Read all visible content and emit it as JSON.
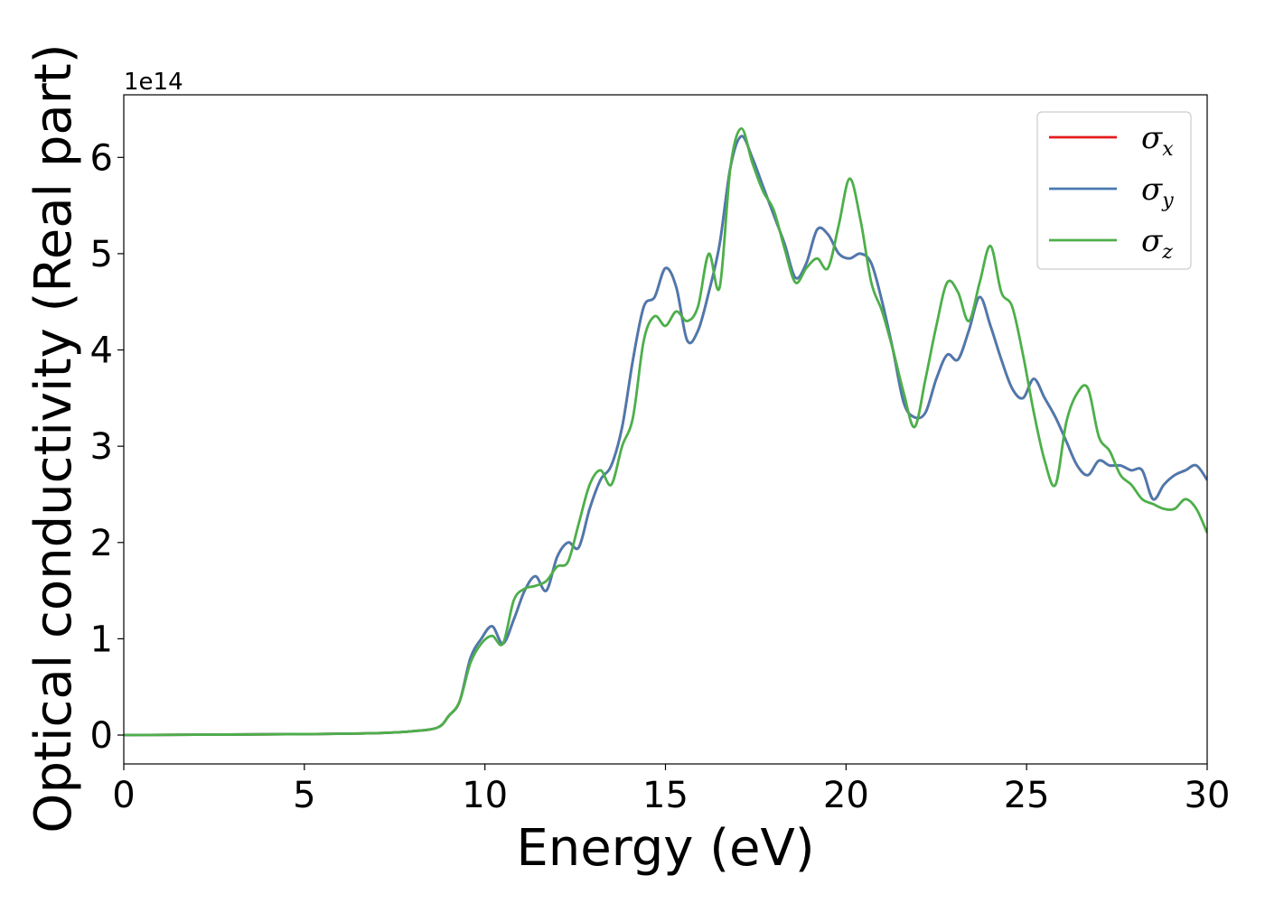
{
  "chart_data": {
    "type": "line",
    "xlabel": "Energy (eV)",
    "ylabel": "Optical conductivity (Real part)",
    "y_offset_label": "1e14",
    "xlim": [
      0,
      30
    ],
    "ylim": [
      -0.3,
      6.65
    ],
    "x_ticks": [
      0,
      5,
      10,
      15,
      20,
      25,
      30
    ],
    "y_ticks": [
      0,
      1,
      2,
      3,
      4,
      5,
      6
    ],
    "grid": false,
    "legend_position": "top-right",
    "series": [
      {
        "name": "σx",
        "symbol": "σ",
        "sub": "x",
        "color": "#e41a1c",
        "x": [
          0,
          5,
          7,
          8,
          8.7,
          9.0,
          9.3,
          9.6,
          9.9,
          10.2,
          10.5,
          10.8,
          11.1,
          11.4,
          11.7,
          12.0,
          12.3,
          12.6,
          12.9,
          13.2,
          13.5,
          13.8,
          14.1,
          14.4,
          14.7,
          15.0,
          15.3,
          15.6,
          15.9,
          16.2,
          16.5,
          16.8,
          17.1,
          17.4,
          17.7,
          18.0,
          18.3,
          18.6,
          18.9,
          19.2,
          19.5,
          19.8,
          20.1,
          20.4,
          20.7,
          21.0,
          21.3,
          21.6,
          21.9,
          22.2,
          22.5,
          22.8,
          23.1,
          23.4,
          23.7,
          24.0,
          24.3,
          24.6,
          24.9,
          25.2,
          25.5,
          25.8,
          26.1,
          26.4,
          26.7,
          27.0,
          27.3,
          27.6,
          27.9,
          28.2,
          28.5,
          28.8,
          29.1,
          29.4,
          29.7,
          30.0
        ],
        "y": [
          0.0,
          0.01,
          0.02,
          0.04,
          0.08,
          0.2,
          0.35,
          0.8,
          1.0,
          1.13,
          0.95,
          1.2,
          1.5,
          1.65,
          1.5,
          1.85,
          2.0,
          1.95,
          2.35,
          2.65,
          2.8,
          3.2,
          3.9,
          4.45,
          4.55,
          4.85,
          4.65,
          4.1,
          4.2,
          4.6,
          5.1,
          5.9,
          6.22,
          6.0,
          5.7,
          5.4,
          5.1,
          4.75,
          4.9,
          5.25,
          5.2,
          5.0,
          4.95,
          5.0,
          4.9,
          4.5,
          4.0,
          3.45,
          3.3,
          3.35,
          3.7,
          3.95,
          3.9,
          4.2,
          4.55,
          4.25,
          3.9,
          3.6,
          3.5,
          3.7,
          3.5,
          3.3,
          3.05,
          2.8,
          2.7,
          2.85,
          2.8,
          2.8,
          2.75,
          2.75,
          2.45,
          2.6,
          2.7,
          2.75,
          2.8,
          2.65
        ]
      },
      {
        "name": "σy",
        "symbol": "σ",
        "sub": "y",
        "color": "#4a7ab0",
        "x": [
          0,
          5,
          7,
          8,
          8.7,
          9.0,
          9.3,
          9.6,
          9.9,
          10.2,
          10.5,
          10.8,
          11.1,
          11.4,
          11.7,
          12.0,
          12.3,
          12.6,
          12.9,
          13.2,
          13.5,
          13.8,
          14.1,
          14.4,
          14.7,
          15.0,
          15.3,
          15.6,
          15.9,
          16.2,
          16.5,
          16.8,
          17.1,
          17.4,
          17.7,
          18.0,
          18.3,
          18.6,
          18.9,
          19.2,
          19.5,
          19.8,
          20.1,
          20.4,
          20.7,
          21.0,
          21.3,
          21.6,
          21.9,
          22.2,
          22.5,
          22.8,
          23.1,
          23.4,
          23.7,
          24.0,
          24.3,
          24.6,
          24.9,
          25.2,
          25.5,
          25.8,
          26.1,
          26.4,
          26.7,
          27.0,
          27.3,
          27.6,
          27.9,
          28.2,
          28.5,
          28.8,
          29.1,
          29.4,
          29.7,
          30.0
        ],
        "y": [
          0.0,
          0.01,
          0.02,
          0.04,
          0.08,
          0.2,
          0.35,
          0.8,
          1.0,
          1.13,
          0.95,
          1.2,
          1.5,
          1.65,
          1.5,
          1.85,
          2.0,
          1.95,
          2.35,
          2.65,
          2.8,
          3.2,
          3.9,
          4.45,
          4.55,
          4.85,
          4.65,
          4.1,
          4.2,
          4.6,
          5.1,
          5.9,
          6.22,
          6.0,
          5.7,
          5.4,
          5.1,
          4.75,
          4.9,
          5.25,
          5.2,
          5.0,
          4.95,
          5.0,
          4.9,
          4.5,
          4.0,
          3.45,
          3.3,
          3.35,
          3.7,
          3.95,
          3.9,
          4.2,
          4.55,
          4.25,
          3.9,
          3.6,
          3.5,
          3.7,
          3.5,
          3.3,
          3.05,
          2.8,
          2.7,
          2.85,
          2.8,
          2.8,
          2.75,
          2.75,
          2.45,
          2.6,
          2.7,
          2.75,
          2.8,
          2.65
        ]
      },
      {
        "name": "σz",
        "symbol": "σ",
        "sub": "z",
        "color": "#4daf4a",
        "x": [
          0,
          5,
          7,
          8,
          8.7,
          9.0,
          9.3,
          9.6,
          9.9,
          10.2,
          10.5,
          10.8,
          11.1,
          11.4,
          11.7,
          12.0,
          12.3,
          12.6,
          12.9,
          13.2,
          13.5,
          13.8,
          14.1,
          14.4,
          14.7,
          15.0,
          15.3,
          15.6,
          15.9,
          16.2,
          16.5,
          16.8,
          17.1,
          17.4,
          17.7,
          18.0,
          18.3,
          18.6,
          18.9,
          19.2,
          19.5,
          19.8,
          20.1,
          20.4,
          20.7,
          21.0,
          21.3,
          21.6,
          21.9,
          22.2,
          22.5,
          22.8,
          23.1,
          23.4,
          23.7,
          24.0,
          24.3,
          24.6,
          24.9,
          25.2,
          25.5,
          25.8,
          26.1,
          26.4,
          26.7,
          27.0,
          27.3,
          27.6,
          27.9,
          28.2,
          28.5,
          28.8,
          29.1,
          29.4,
          29.7,
          30.0
        ],
        "y": [
          0.0,
          0.01,
          0.02,
          0.04,
          0.08,
          0.2,
          0.35,
          0.75,
          0.95,
          1.03,
          0.95,
          1.4,
          1.52,
          1.55,
          1.6,
          1.75,
          1.8,
          2.2,
          2.6,
          2.75,
          2.6,
          3.0,
          3.3,
          4.1,
          4.35,
          4.25,
          4.4,
          4.3,
          4.45,
          5.0,
          4.65,
          5.9,
          6.3,
          5.95,
          5.65,
          5.45,
          5.05,
          4.7,
          4.85,
          4.95,
          4.85,
          5.3,
          5.78,
          5.35,
          4.7,
          4.4,
          4.0,
          3.55,
          3.2,
          3.7,
          4.25,
          4.7,
          4.6,
          4.3,
          4.7,
          5.08,
          4.6,
          4.45,
          3.95,
          3.35,
          2.85,
          2.6,
          3.25,
          3.55,
          3.6,
          3.1,
          2.95,
          2.7,
          2.6,
          2.45,
          2.4,
          2.35,
          2.35,
          2.45,
          2.35,
          2.1
        ]
      }
    ]
  }
}
